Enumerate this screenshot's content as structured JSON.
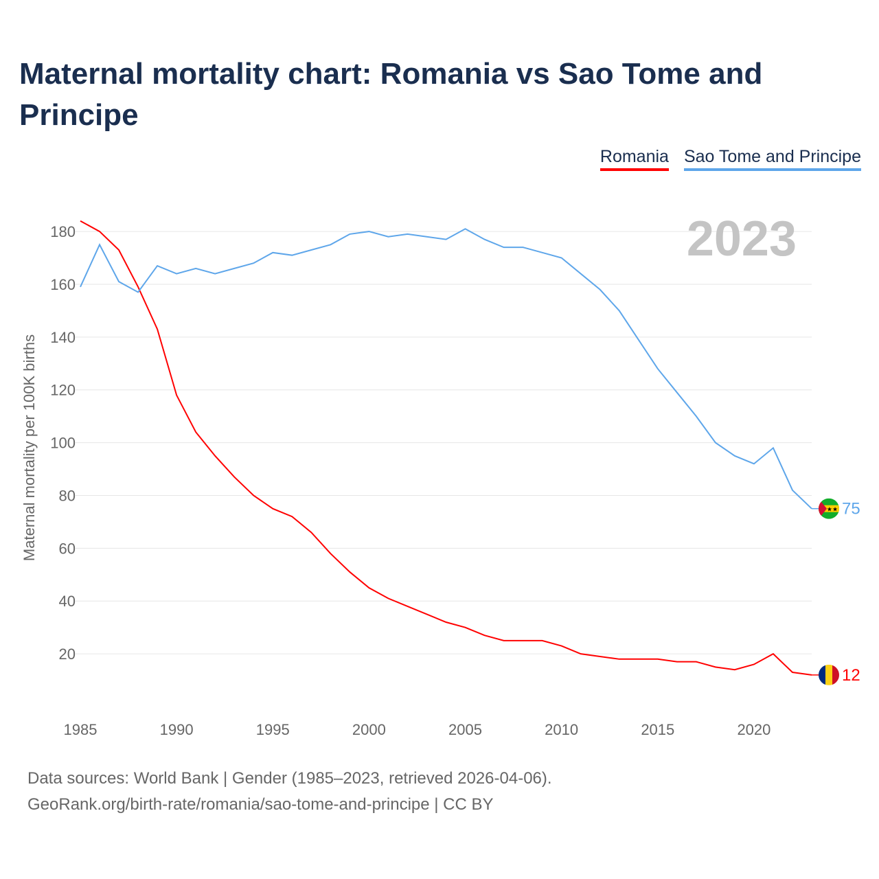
{
  "title": "Maternal mortality chart: Romania vs Sao Tome and Principe",
  "legend": [
    {
      "label": "Romania",
      "color": "#ff0000"
    },
    {
      "label": "Sao Tome and Principe",
      "color": "#5ea6ea"
    }
  ],
  "footer": {
    "line1": "Data sources: World Bank | Gender (1985–2023, retrieved 2026-04-06).",
    "line2": "GeoRank.org/birth-rate/romania/sao-tome-and-principe | CC BY"
  },
  "chart_data": {
    "type": "line",
    "title": "Maternal mortality chart: Romania vs Sao Tome and Principe",
    "ylabel": "Maternal mortality per 100K births",
    "xlabel": "",
    "year_label": "2023",
    "xlim": [
      1985,
      2023
    ],
    "ylim": [
      0,
      190
    ],
    "yticks": [
      20,
      40,
      60,
      80,
      100,
      120,
      140,
      160,
      180
    ],
    "xticks": [
      1985,
      1990,
      1995,
      2000,
      2005,
      2010,
      2015,
      2020
    ],
    "grid": true,
    "legend_position": "top-right",
    "x": [
      1985,
      1986,
      1987,
      1988,
      1989,
      1990,
      1991,
      1992,
      1993,
      1994,
      1995,
      1996,
      1997,
      1998,
      1999,
      2000,
      2001,
      2002,
      2003,
      2004,
      2005,
      2006,
      2007,
      2008,
      2009,
      2010,
      2011,
      2012,
      2013,
      2014,
      2015,
      2016,
      2017,
      2018,
      2019,
      2020,
      2021,
      2022,
      2023
    ],
    "series": [
      {
        "name": "Romania",
        "color": "#ff0000",
        "end_label": "12",
        "flag": "romania-flag-icon",
        "values": [
          184,
          180,
          173,
          159,
          143,
          118,
          104,
          95,
          87,
          80,
          75,
          72,
          66,
          58,
          51,
          45,
          41,
          38,
          35,
          32,
          30,
          27,
          25,
          25,
          25,
          23,
          20,
          19,
          18,
          18,
          18,
          17,
          17,
          15,
          14,
          16,
          20,
          13,
          12
        ]
      },
      {
        "name": "Sao Tome and Principe",
        "color": "#5ea6ea",
        "end_label": "75",
        "flag": "sao-tome-flag-icon",
        "values": [
          159,
          175,
          161,
          157,
          167,
          164,
          166,
          164,
          166,
          168,
          172,
          171,
          173,
          175,
          179,
          180,
          178,
          179,
          178,
          177,
          181,
          177,
          174,
          174,
          172,
          170,
          164,
          158,
          150,
          139,
          128,
          119,
          110,
          100,
          95,
          92,
          98,
          82,
          75
        ]
      }
    ]
  }
}
